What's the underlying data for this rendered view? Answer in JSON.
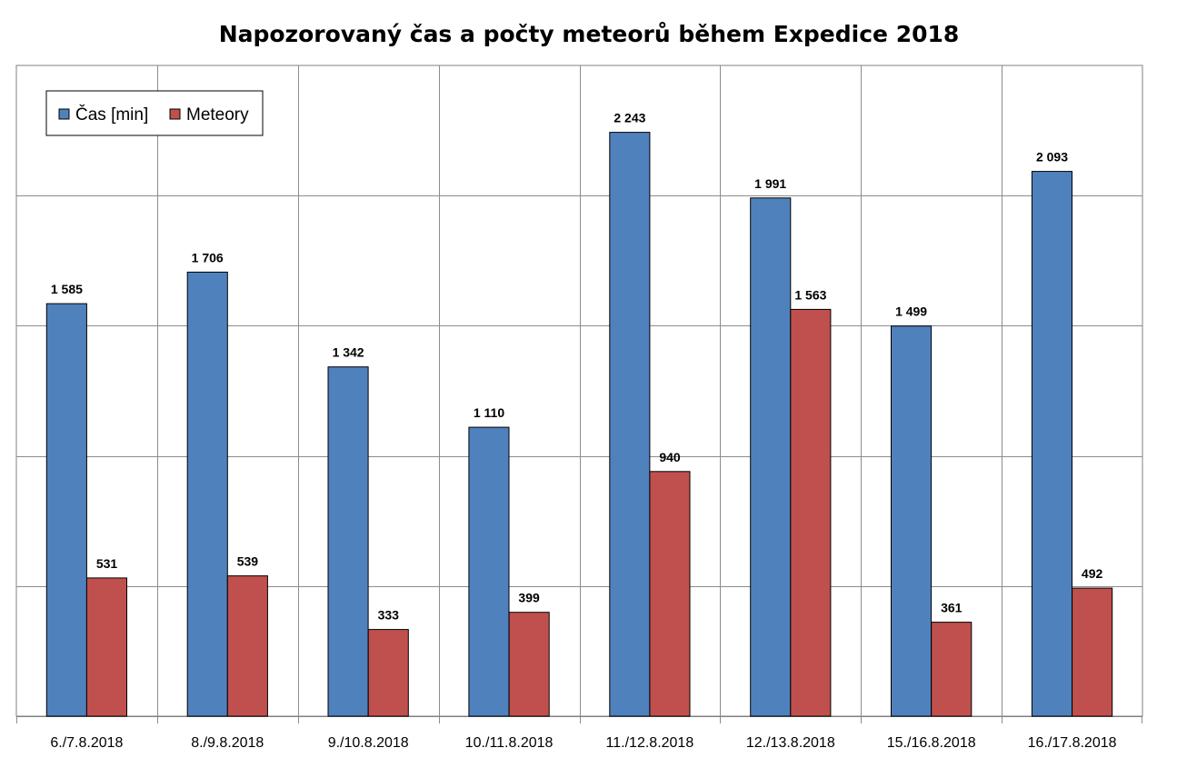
{
  "chart_data": {
    "type": "bar",
    "title": "Napozorovaný čas a počty meteorů během Expedice 2018",
    "xlabel": "",
    "ylabel": "",
    "ylim": [
      0,
      2500
    ],
    "grid": true,
    "legend_position": "top-left",
    "categories": [
      "6./7.8.2018",
      "8./9.8.2018",
      "9./10.8.2018",
      "10./11.8.2018",
      "11./12.8.2018",
      "12./13.8.2018",
      "15./16.8.2018",
      "16./17.8.2018"
    ],
    "series": [
      {
        "name": "Čas [min]",
        "color": "#4F81BD",
        "values": [
          1585,
          1706,
          1342,
          1110,
          2243,
          1991,
          1499,
          2093
        ],
        "labels": [
          "1 585",
          "1 706",
          "1 342",
          "1 110",
          "2 243",
          "1 991",
          "1 499",
          "2 093"
        ]
      },
      {
        "name": "Meteory",
        "color": "#C0504D",
        "values": [
          531,
          539,
          333,
          399,
          940,
          1563,
          361,
          492
        ],
        "labels": [
          "531",
          "539",
          "333",
          "399",
          "940",
          "1 563",
          "361",
          "492"
        ]
      }
    ]
  }
}
